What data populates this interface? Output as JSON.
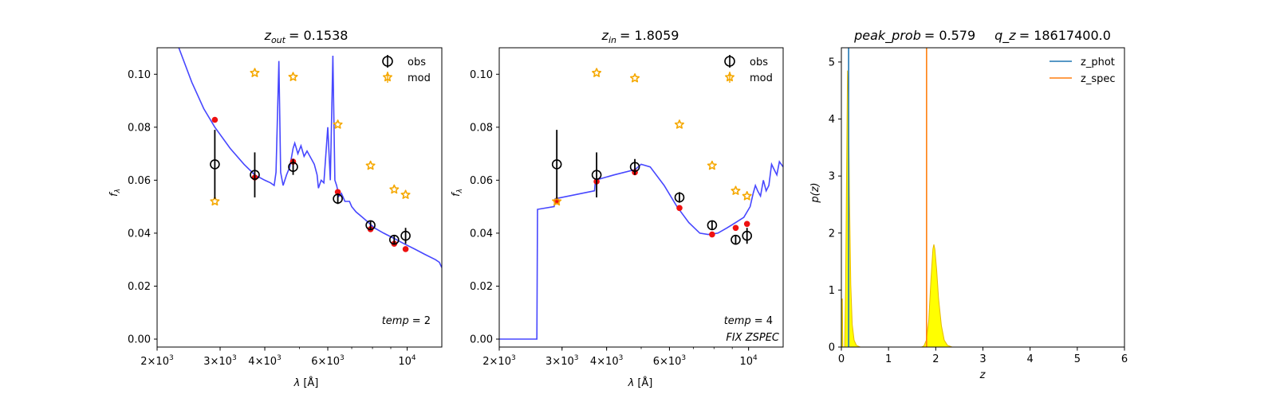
{
  "chart_data": [
    {
      "type": "line",
      "title": {
        "var": "z",
        "sub": "out",
        "value": "= 0.1538"
      },
      "xlabel": {
        "sym": "λ",
        "unit": "[Å]"
      },
      "ylabel": {
        "sym": "f",
        "sub": "λ"
      },
      "xscale": "log",
      "xlim": [
        2000,
        12500
      ],
      "ylim": [
        -0.003,
        0.11
      ],
      "yticks": [
        0.0,
        0.02,
        0.04,
        0.06,
        0.08,
        0.1
      ],
      "ytick_labels": [
        "0.00",
        "0.02",
        "0.04",
        "0.06",
        "0.08",
        "0.10"
      ],
      "xticks": [
        {
          "value": 2000,
          "base": "2×10",
          "exp": "3"
        },
        {
          "value": 3000,
          "base": "3×10",
          "exp": "3"
        },
        {
          "value": 4000,
          "base": "4×10",
          "exp": "3"
        },
        {
          "value": 6000,
          "base": "6×10",
          "exp": "3"
        },
        {
          "value": 10000,
          "base": "10",
          "exp": "4"
        }
      ],
      "legend": {
        "position": "top-right",
        "entries": [
          "obs",
          "mod"
        ]
      },
      "annotations": [
        {
          "prefix": "temp",
          "value": "= 2"
        }
      ],
      "colors": {
        "model_line": "#3333ff",
        "model_points": "#ee1111",
        "obs": "#000000",
        "mod": "#f5a800"
      },
      "model_line": [
        [
          2300,
          0.11
        ],
        [
          2500,
          0.097
        ],
        [
          2700,
          0.087
        ],
        [
          2900,
          0.08
        ],
        [
          3200,
          0.072
        ],
        [
          3500,
          0.066
        ],
        [
          3750,
          0.062
        ],
        [
          4000,
          0.06
        ],
        [
          4150,
          0.059
        ],
        [
          4250,
          0.058
        ],
        [
          4300,
          0.063
        ],
        [
          4380,
          0.105
        ],
        [
          4430,
          0.063
        ],
        [
          4500,
          0.058
        ],
        [
          4600,
          0.062
        ],
        [
          4700,
          0.065
        ],
        [
          4800,
          0.072
        ],
        [
          4850,
          0.074
        ],
        [
          4900,
          0.072
        ],
        [
          4950,
          0.07
        ],
        [
          5050,
          0.073
        ],
        [
          5150,
          0.069
        ],
        [
          5250,
          0.071
        ],
        [
          5400,
          0.068
        ],
        [
          5500,
          0.066
        ],
        [
          5600,
          0.062
        ],
        [
          5650,
          0.057
        ],
        [
          5750,
          0.06
        ],
        [
          5850,
          0.059
        ],
        [
          6000,
          0.08
        ],
        [
          6100,
          0.06
        ],
        [
          6200,
          0.107
        ],
        [
          6280,
          0.06
        ],
        [
          6350,
          0.058
        ],
        [
          6450,
          0.054
        ],
        [
          6550,
          0.055
        ],
        [
          6700,
          0.052
        ],
        [
          6900,
          0.052
        ],
        [
          7000,
          0.05
        ],
        [
          7200,
          0.048
        ],
        [
          7500,
          0.046
        ],
        [
          7800,
          0.044
        ],
        [
          8100,
          0.042
        ],
        [
          8600,
          0.04
        ],
        [
          9200,
          0.038
        ],
        [
          9800,
          0.036
        ],
        [
          10500,
          0.034
        ],
        [
          11200,
          0.032
        ],
        [
          12000,
          0.03
        ],
        [
          12300,
          0.029
        ],
        [
          12500,
          0.027
        ]
      ],
      "model_points": [
        [
          2900,
          0.0828
        ],
        [
          3750,
          0.061
        ],
        [
          4800,
          0.067
        ],
        [
          6400,
          0.0555
        ],
        [
          7900,
          0.0415
        ],
        [
          9200,
          0.036
        ],
        [
          9900,
          0.034
        ]
      ],
      "obs": [
        {
          "x": 2900,
          "y": 0.066,
          "err": 0.013
        },
        {
          "x": 3750,
          "y": 0.062,
          "err": 0.0085
        },
        {
          "x": 4800,
          "y": 0.065,
          "err": 0.003
        },
        {
          "x": 6400,
          "y": 0.053,
          "err": 0.002
        },
        {
          "x": 7900,
          "y": 0.043,
          "err": 0.0015
        },
        {
          "x": 9200,
          "y": 0.0375,
          "err": 0.0015
        },
        {
          "x": 9900,
          "y": 0.039,
          "err": 0.003
        }
      ],
      "mod": [
        [
          2900,
          0.052
        ],
        [
          3750,
          0.1005
        ],
        [
          4800,
          0.099
        ],
        [
          6400,
          0.081
        ],
        [
          7900,
          0.0655
        ],
        [
          9200,
          0.0565
        ],
        [
          9900,
          0.0545
        ]
      ]
    },
    {
      "type": "line",
      "title": {
        "var": "z",
        "sub": "in",
        "value": "= 1.8059"
      },
      "xlabel": {
        "sym": "λ",
        "unit": "[Å]"
      },
      "ylabel": {
        "sym": "f",
        "sub": "λ"
      },
      "xscale": "log",
      "xlim": [
        2000,
        12500
      ],
      "ylim": [
        -0.003,
        0.11
      ],
      "yticks": [
        0.0,
        0.02,
        0.04,
        0.06,
        0.08,
        0.1
      ],
      "ytick_labels": [
        "0.00",
        "0.02",
        "0.04",
        "0.06",
        "0.08",
        "0.10"
      ],
      "xticks": [
        {
          "value": 2000,
          "base": "2×10",
          "exp": "3"
        },
        {
          "value": 3000,
          "base": "3×10",
          "exp": "3"
        },
        {
          "value": 4000,
          "base": "4×10",
          "exp": "3"
        },
        {
          "value": 6000,
          "base": "6×10",
          "exp": "3"
        },
        {
          "value": 10000,
          "base": "10",
          "exp": "4"
        }
      ],
      "legend": {
        "position": "top-right",
        "entries": [
          "obs",
          "mod"
        ]
      },
      "annotations": [
        {
          "prefix": "temp",
          "value": "= 4"
        },
        {
          "prefix": "FIX ZSPEC",
          "value": ""
        }
      ],
      "colors": {
        "model_line": "#3333ff",
        "model_points": "#ee1111",
        "obs": "#000000",
        "mod": "#f5a800"
      },
      "model_line": [
        [
          2000,
          0.0
        ],
        [
          2550,
          0.0
        ],
        [
          2560,
          0.049
        ],
        [
          2850,
          0.05
        ],
        [
          2870,
          0.053
        ],
        [
          3700,
          0.056
        ],
        [
          3720,
          0.06
        ],
        [
          4200,
          0.062
        ],
        [
          4800,
          0.064
        ],
        [
          5000,
          0.066
        ],
        [
          5300,
          0.065
        ],
        [
          5800,
          0.058
        ],
        [
          6300,
          0.05
        ],
        [
          6800,
          0.044
        ],
        [
          7300,
          0.04
        ],
        [
          7700,
          0.0395
        ],
        [
          8200,
          0.04
        ],
        [
          8700,
          0.042
        ],
        [
          9200,
          0.044
        ],
        [
          9700,
          0.046
        ],
        [
          10100,
          0.05
        ],
        [
          10300,
          0.055
        ],
        [
          10450,
          0.058
        ],
        [
          10600,
          0.056
        ],
        [
          10800,
          0.054
        ],
        [
          11000,
          0.06
        ],
        [
          11200,
          0.056
        ],
        [
          11400,
          0.058
        ],
        [
          11600,
          0.066
        ],
        [
          11800,
          0.064
        ],
        [
          12000,
          0.062
        ],
        [
          12200,
          0.067
        ],
        [
          12500,
          0.065
        ]
      ],
      "model_points": [
        [
          2900,
          0.052
        ],
        [
          3750,
          0.0595
        ],
        [
          4800,
          0.063
        ],
        [
          6400,
          0.0495
        ],
        [
          7900,
          0.0395
        ],
        [
          9200,
          0.042
        ],
        [
          9900,
          0.0435
        ]
      ],
      "obs": [
        {
          "x": 2900,
          "y": 0.066,
          "err": 0.013
        },
        {
          "x": 3750,
          "y": 0.062,
          "err": 0.0085
        },
        {
          "x": 4800,
          "y": 0.065,
          "err": 0.003
        },
        {
          "x": 6400,
          "y": 0.0535,
          "err": 0.002
        },
        {
          "x": 7900,
          "y": 0.043,
          "err": 0.0015
        },
        {
          "x": 9200,
          "y": 0.0375,
          "err": 0.0015
        },
        {
          "x": 9900,
          "y": 0.039,
          "err": 0.003
        }
      ],
      "mod": [
        [
          2900,
          0.052
        ],
        [
          3750,
          0.1005
        ],
        [
          4800,
          0.0985
        ],
        [
          6400,
          0.081
        ],
        [
          7900,
          0.0655
        ],
        [
          9200,
          0.056
        ],
        [
          9900,
          0.054
        ]
      ]
    },
    {
      "type": "area",
      "title_parts": [
        {
          "name": "peak_prob",
          "value": "= 0.579"
        },
        {
          "name": "q_z",
          "value": "= 18617400.0"
        }
      ],
      "xlabel": "z",
      "ylabel": "p(z)",
      "xlim": [
        0,
        6
      ],
      "ylim": [
        0,
        5.25
      ],
      "xticks": [
        0,
        1,
        2,
        3,
        4,
        5,
        6
      ],
      "yticks": [
        0,
        1,
        2,
        3,
        4,
        5
      ],
      "legend": {
        "position": "top-right",
        "entries": [
          "z_phot",
          "z_spec"
        ]
      },
      "colors": {
        "z_phot": "#1f77b4",
        "z_spec": "#ff7f0e",
        "fill": "#ffff00"
      },
      "z_phot": 0.1538,
      "z_spec": 1.8059,
      "pdf": [
        [
          0,
          0.8
        ],
        [
          0.02,
          0.85
        ],
        [
          0.03,
          0.0
        ],
        [
          0.07,
          0.0
        ],
        [
          0.09,
          1.0
        ],
        [
          0.11,
          3.0
        ],
        [
          0.13,
          4.85
        ],
        [
          0.15,
          4.4
        ],
        [
          0.17,
          2.7
        ],
        [
          0.2,
          1.1
        ],
        [
          0.23,
          0.4
        ],
        [
          0.27,
          0.12
        ],
        [
          0.32,
          0.03
        ],
        [
          0.4,
          0.0
        ],
        [
          1.7,
          0.0
        ],
        [
          1.75,
          0.02
        ],
        [
          1.8,
          0.12
        ],
        [
          1.85,
          0.45
        ],
        [
          1.9,
          1.2
        ],
        [
          1.94,
          1.72
        ],
        [
          1.96,
          1.8
        ],
        [
          1.98,
          1.72
        ],
        [
          2.02,
          1.35
        ],
        [
          2.06,
          0.85
        ],
        [
          2.12,
          0.38
        ],
        [
          2.18,
          0.12
        ],
        [
          2.25,
          0.03
        ],
        [
          2.35,
          0.0
        ],
        [
          5,
          0.0
        ]
      ]
    }
  ]
}
